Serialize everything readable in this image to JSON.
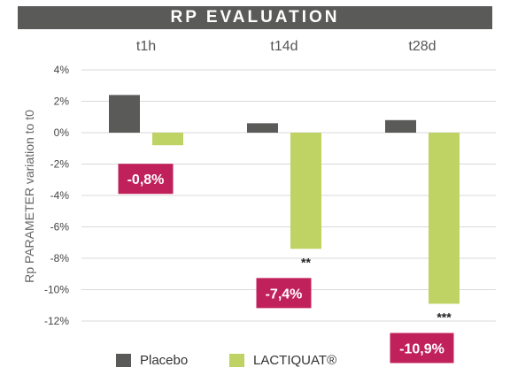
{
  "chart_data": {
    "type": "bar",
    "title": "RP EVALUATION",
    "ylabel": "Rp PARAMETER variation to t0",
    "categories": [
      "t1h",
      "t14d",
      "t28d"
    ],
    "ylim": [
      -12,
      4
    ],
    "yticks": [
      4,
      2,
      0,
      -2,
      -4,
      -6,
      -8,
      -10,
      -12
    ],
    "ytick_labels": [
      "4%",
      "2%",
      "0%",
      "-2%",
      "-4%",
      "-6%",
      "-8%",
      "-10%",
      "-12%"
    ],
    "series": [
      {
        "name": "Placebo",
        "color": "#5a5a58",
        "values": [
          2.4,
          0.6,
          0.8
        ]
      },
      {
        "name": "LACTIQUAT®",
        "color": "#bfd264",
        "values": [
          -0.8,
          -7.4,
          -10.9
        ]
      }
    ],
    "value_labels": [
      "-0,8%",
      "-7,4%",
      "-10,9%"
    ],
    "significance": [
      "",
      "**",
      "***"
    ],
    "label_color": "#c0215a",
    "grid": true,
    "legend": "bottom-left"
  }
}
